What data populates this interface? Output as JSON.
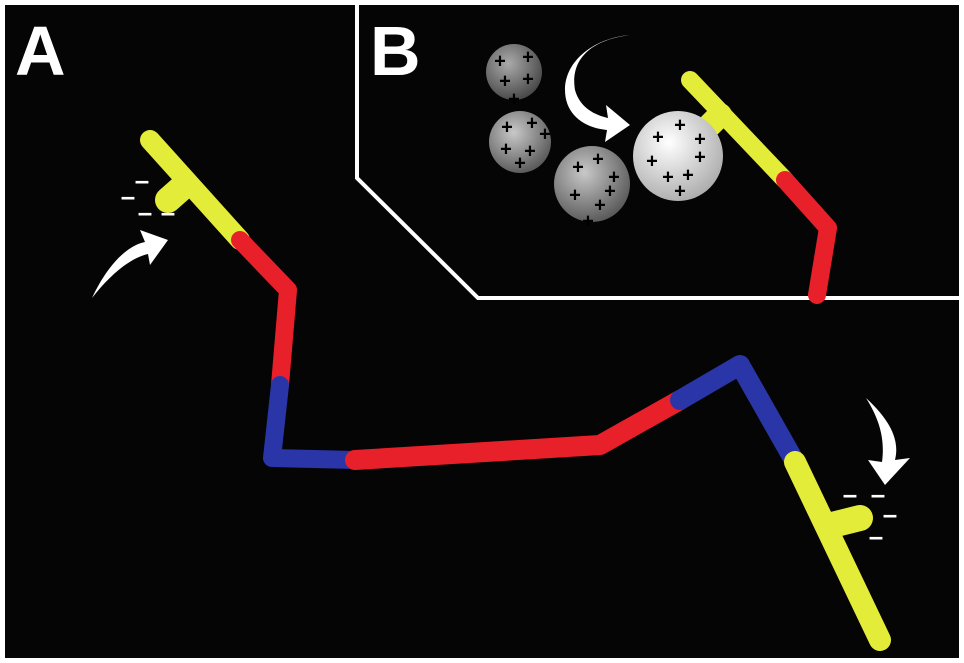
{
  "panels": [
    {
      "label": "A"
    },
    {
      "label": "B"
    }
  ],
  "symbols": {
    "positive": "+",
    "negative": "–"
  }
}
